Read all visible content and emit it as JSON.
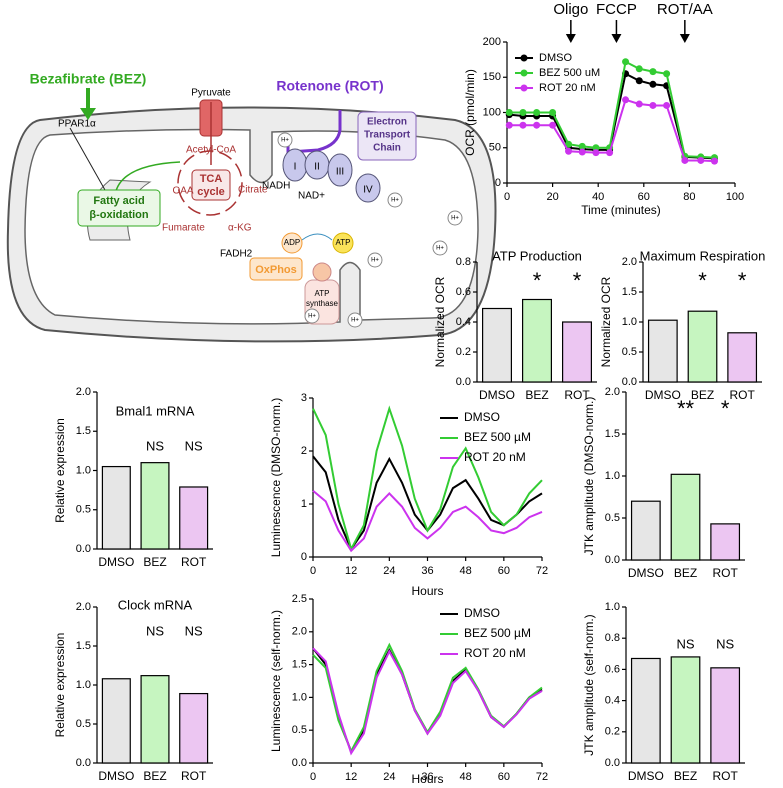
{
  "diagram": {
    "bez": "Bezafibrate (BEZ)",
    "ppar": "PPAR1α",
    "pyruvate": "Pyruvate",
    "rot": "Rotenone (ROT)",
    "etc": [
      "Electron",
      "Transport",
      "Chain"
    ],
    "acetyl": "Acetyl-CoA",
    "oaa": "OAA",
    "citrate": "Citrate",
    "tca": [
      "TCA",
      "cycle"
    ],
    "nadh": "NADH",
    "nad": "NAD+",
    "fumarate": "Fumarate",
    "akg": "α-KG",
    "fadh": "FADH2",
    "fao": [
      "Fatty acid",
      "β-oxidation"
    ],
    "adp": "ADP",
    "atp": "ATP",
    "oxphos": "OxPhos",
    "synthase": [
      "ATP",
      "synthase"
    ],
    "complexes": [
      "I",
      "II",
      "III",
      "IV"
    ],
    "proton": "H+"
  },
  "chart_data": [
    {
      "type": "line",
      "ylabel": "OCR (pmol/min)",
      "xlabel": "Time (minutes)",
      "x": [
        1,
        7,
        13,
        20,
        27,
        33,
        39,
        45,
        52,
        58,
        64,
        70,
        78,
        85,
        91
      ],
      "series": [
        {
          "name": "DMSO",
          "color": "#000000",
          "values": [
            97,
            95,
            95,
            95,
            50,
            48,
            47,
            47,
            155,
            145,
            140,
            138,
            37,
            36,
            35
          ]
        },
        {
          "name": "BEZ 500 uM",
          "color": "#33cc33",
          "values": [
            100,
            100,
            100,
            100,
            55,
            52,
            50,
            50,
            172,
            162,
            158,
            155,
            38,
            37,
            36
          ]
        },
        {
          "name": "ROT 20 nM",
          "color": "#cc33ee",
          "values": [
            82,
            82,
            82,
            82,
            45,
            44,
            43,
            43,
            118,
            112,
            110,
            110,
            32,
            32,
            31
          ]
        }
      ],
      "annotations": [
        {
          "text": "Oligo",
          "x": 28
        },
        {
          "text": "FCCP",
          "x": 48
        },
        {
          "text": "ROT/AA",
          "x": 78
        }
      ],
      "markers": true,
      "xlim": [
        0,
        100
      ],
      "xticks": [
        0,
        20,
        40,
        60,
        80,
        100
      ],
      "ylim": [
        0,
        200
      ],
      "yticks": [
        0,
        50,
        100,
        150,
        200
      ]
    },
    {
      "type": "bar",
      "title": "ATP Production",
      "ylabel": "Normalized OCR",
      "categories": [
        "DMSO",
        "BEZ",
        "ROT"
      ],
      "values": [
        0.49,
        0.55,
        0.4
      ],
      "colors": [
        "#e6e6e6",
        "#c6f5c0",
        "#ecc6f2"
      ],
      "annotations": [
        null,
        "*",
        "*"
      ],
      "ylim": [
        0,
        0.8
      ],
      "yticks": [
        {
          "value": 0,
          "label": "0.0"
        },
        0.2,
        0.4,
        0.6,
        0.8
      ]
    },
    {
      "type": "bar",
      "title": "Maximum Respiration",
      "ylabel": "Normalized OCR",
      "categories": [
        "DMSO",
        "BEZ",
        "ROT"
      ],
      "values": [
        1.03,
        1.18,
        0.82
      ],
      "colors": [
        "#e6e6e6",
        "#c6f5c0",
        "#ecc6f2"
      ],
      "annotations": [
        null,
        "*",
        "*"
      ],
      "ylim": [
        0,
        2
      ],
      "yticks": [
        {
          "value": 0,
          "label": "0.0"
        },
        0.5,
        {
          "value": 1,
          "label": "1.0"
        },
        1.5,
        {
          "value": 2,
          "label": "2.0"
        }
      ]
    },
    {
      "type": "bar",
      "title": "Bmal1 mRNA",
      "ylabel": "Relative expression",
      "categories": [
        "DMSO",
        "BEZ",
        "ROT"
      ],
      "values": [
        1.05,
        1.1,
        0.79
      ],
      "colors": [
        "#e6e6e6",
        "#c6f5c0",
        "#ecc6f2"
      ],
      "annotations": [
        null,
        "NS",
        "NS"
      ],
      "ylim": [
        0,
        2
      ],
      "yticks": [
        {
          "value": 0,
          "label": "0.0"
        },
        0.5,
        {
          "value": 1,
          "label": "1.0"
        },
        1.5,
        {
          "value": 2,
          "label": "2.0"
        }
      ]
    },
    {
      "type": "bar",
      "title": "Clock mRNA",
      "ylabel": "Relative expression",
      "categories": [
        "DMSO",
        "BEZ",
        "ROT"
      ],
      "values": [
        1.08,
        1.12,
        0.89
      ],
      "colors": [
        "#e6e6e6",
        "#c6f5c0",
        "#ecc6f2"
      ],
      "annotations": [
        null,
        "NS",
        "NS"
      ],
      "ylim": [
        0,
        2
      ],
      "yticks": [
        {
          "value": 0,
          "label": "0.0"
        },
        0.5,
        {
          "value": 1,
          "label": "1.0"
        },
        1.5,
        {
          "value": 2,
          "label": "2.0"
        }
      ]
    },
    {
      "type": "line",
      "ylabel": "Luminescence (DMSO-norm.)",
      "xlabel": "Hours",
      "x": [
        0,
        4,
        8,
        12,
        16,
        20,
        24,
        28,
        32,
        36,
        40,
        44,
        48,
        52,
        56,
        60,
        64,
        68,
        72
      ],
      "series": [
        {
          "name": "DMSO",
          "color": "#000000",
          "values": [
            1.9,
            1.6,
            0.7,
            0.15,
            0.5,
            1.4,
            1.85,
            1.4,
            0.8,
            0.5,
            0.8,
            1.3,
            1.45,
            1.1,
            0.7,
            0.6,
            0.8,
            1.05,
            1.2
          ]
        },
        {
          "name": "BEZ 500 µM",
          "color": "#33cc33",
          "values": [
            2.8,
            2.3,
            1.0,
            0.15,
            0.6,
            2.0,
            2.8,
            2.1,
            1.1,
            0.5,
            0.9,
            1.7,
            2.05,
            1.5,
            0.85,
            0.6,
            0.8,
            1.2,
            1.45
          ]
        },
        {
          "name": "ROT 20 nM",
          "color": "#cc33ee",
          "values": [
            1.25,
            1.05,
            0.5,
            0.12,
            0.35,
            0.95,
            1.2,
            0.95,
            0.55,
            0.35,
            0.55,
            0.85,
            0.95,
            0.75,
            0.5,
            0.45,
            0.55,
            0.75,
            0.85
          ]
        }
      ],
      "xlim": [
        0,
        72
      ],
      "xticks": [
        0,
        12,
        24,
        36,
        48,
        60,
        72
      ],
      "ylim": [
        0,
        3
      ],
      "yticks": [
        0,
        1,
        2,
        3
      ]
    },
    {
      "type": "line",
      "ylabel": "Luminescence (self-norm.)",
      "xlabel": "Hours",
      "x": [
        0,
        4,
        8,
        12,
        16,
        20,
        24,
        28,
        32,
        36,
        40,
        44,
        48,
        52,
        56,
        60,
        64,
        68,
        72
      ],
      "series": [
        {
          "name": "DMSO",
          "color": "#000000",
          "values": [
            1.75,
            1.5,
            0.7,
            0.17,
            0.5,
            1.35,
            1.72,
            1.35,
            0.8,
            0.45,
            0.75,
            1.25,
            1.42,
            1.1,
            0.7,
            0.55,
            0.75,
            1.0,
            1.12
          ]
        },
        {
          "name": "BEZ 500 µM",
          "color": "#33cc33",
          "values": [
            1.65,
            1.45,
            0.65,
            0.18,
            0.55,
            1.4,
            1.8,
            1.4,
            0.82,
            0.47,
            0.78,
            1.3,
            1.45,
            1.12,
            0.72,
            0.56,
            0.75,
            1.0,
            1.15
          ]
        },
        {
          "name": "ROT 20 nM",
          "color": "#cc33ee",
          "values": [
            1.75,
            1.55,
            0.75,
            0.15,
            0.45,
            1.3,
            1.7,
            1.35,
            0.8,
            0.45,
            0.72,
            1.22,
            1.4,
            1.1,
            0.7,
            0.55,
            0.74,
            0.98,
            1.1
          ]
        }
      ],
      "xlim": [
        0,
        72
      ],
      "xticks": [
        0,
        12,
        24,
        36,
        48,
        60,
        72
      ],
      "ylim": [
        0,
        2.5
      ],
      "yticks": [
        {
          "value": 0,
          "label": "0.0"
        },
        0.5,
        {
          "value": 1,
          "label": "1.0"
        },
        1.5,
        {
          "value": 2,
          "label": "2.0"
        },
        2.5
      ]
    },
    {
      "type": "bar",
      "ylabel": "JTK amplitude (DMSO-norm.)",
      "categories": [
        "DMSO",
        "BEZ",
        "ROT"
      ],
      "values": [
        0.7,
        1.02,
        0.43
      ],
      "colors": [
        "#e6e6e6",
        "#c6f5c0",
        "#ecc6f2"
      ],
      "annotations": [
        null,
        "**",
        "*"
      ],
      "ylim": [
        0,
        2
      ],
      "yticks": [
        {
          "value": 0,
          "label": "0.0"
        },
        0.5,
        {
          "value": 1,
          "label": "1.0"
        },
        1.5,
        {
          "value": 2,
          "label": "2.0"
        }
      ]
    },
    {
      "type": "bar",
      "ylabel": "JTK amplitude (self-norm.)",
      "categories": [
        "DMSO",
        "BEZ",
        "ROT"
      ],
      "values": [
        0.67,
        0.68,
        0.61
      ],
      "colors": [
        "#e6e6e6",
        "#c6f5c0",
        "#ecc6f2"
      ],
      "annotations": [
        null,
        "NS",
        "NS"
      ],
      "ylim": [
        0,
        1
      ],
      "yticks": [
        {
          "value": 0,
          "label": "0.0"
        },
        0.2,
        0.4,
        0.6,
        0.8,
        {
          "value": 1,
          "label": "1.0"
        }
      ]
    }
  ]
}
